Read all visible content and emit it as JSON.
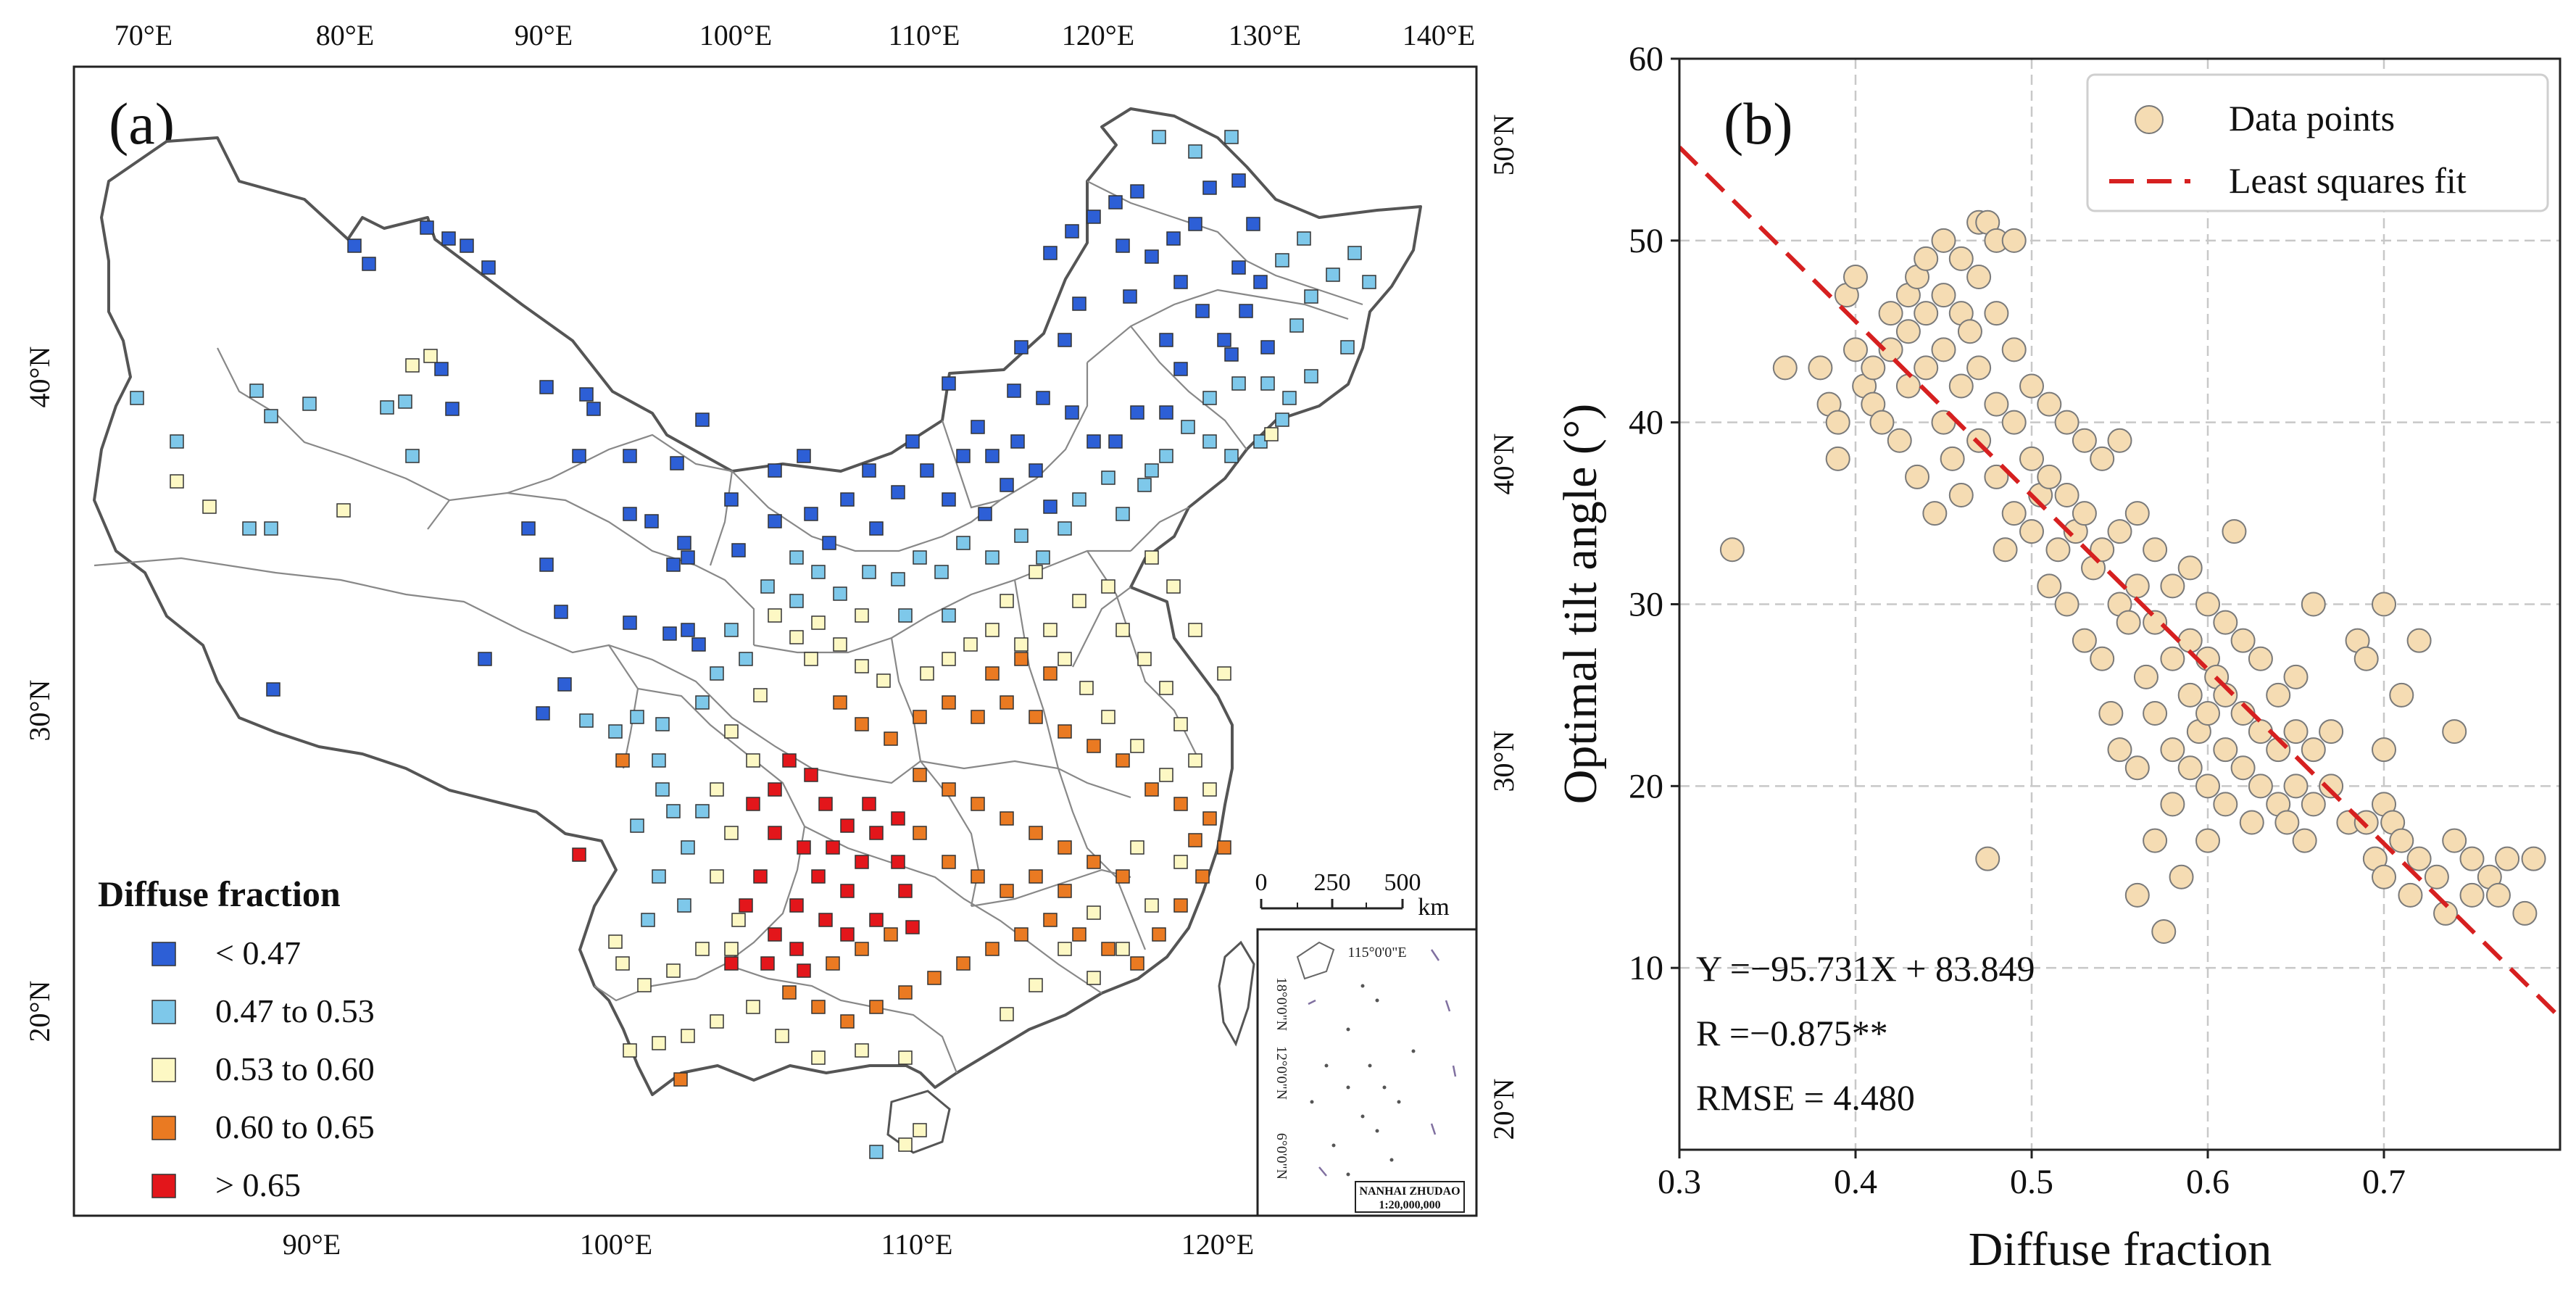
{
  "map_panel": {
    "label": "(a)",
    "lon_ticks_top": [
      "70°E",
      "80°E",
      "90°E",
      "100°E",
      "110°E",
      "120°E",
      "130°E",
      "140°E"
    ],
    "lat_ticks_left": [
      "40°N",
      "30°N",
      "20°N"
    ],
    "lat_ticks_right": [
      "50°N",
      "40°N",
      "30°N",
      "20°N"
    ],
    "lon_ticks_bottom": [
      "90°E",
      "100°E",
      "110°E",
      "120°E"
    ],
    "scale_bar": {
      "ticks": [
        "0",
        "250",
        "500"
      ],
      "unit": "km"
    },
    "inset": {
      "meridian": "115°0'0\"E",
      "parallels": [
        "18°0'0\"N",
        "12°0'0\"N",
        "6°0'0\"N"
      ],
      "name": "NANHAI ZHUDAO",
      "scale": "1:20,000,000"
    },
    "legend": {
      "title": "Diffuse fraction",
      "items": [
        {
          "label": "< 0.47",
          "color": "#2d5fd6"
        },
        {
          "label": "0.47 to 0.53",
          "color": "#7ec8ea"
        },
        {
          "label": "0.53 to 0.60",
          "color": "#fdf8c4"
        },
        {
          "label": "0.60 to 0.65",
          "color": "#ea7a22"
        },
        {
          "label": "> 0.65",
          "color": "#e3161b"
        }
      ]
    }
  },
  "chart_data": {
    "type": "scatter",
    "label": "(b)",
    "xlabel": "Diffuse fraction",
    "ylabel": "Optimal tilt angle (°)",
    "xlim": [
      0.3,
      0.8
    ],
    "ylim": [
      0,
      60
    ],
    "xticks": [
      0.3,
      0.4,
      0.5,
      0.6,
      0.7
    ],
    "yticks": [
      10,
      20,
      30,
      40,
      50,
      60
    ],
    "grid": true,
    "legend_position": "top-right",
    "legend": [
      "Data points",
      "Least squares fit"
    ],
    "marker_color": "#f5dcb3",
    "fit_color": "#d62020",
    "fit": {
      "slope": -95.731,
      "intercept": 83.849
    },
    "annotations": [
      "Y =−95.731X + 83.849",
      "R =−0.875**",
      "RMSE = 4.480"
    ],
    "points": [
      [
        0.33,
        33
      ],
      [
        0.36,
        43
      ],
      [
        0.38,
        43
      ],
      [
        0.385,
        41
      ],
      [
        0.39,
        40
      ],
      [
        0.39,
        38
      ],
      [
        0.395,
        47
      ],
      [
        0.4,
        48
      ],
      [
        0.4,
        44
      ],
      [
        0.405,
        42
      ],
      [
        0.41,
        43
      ],
      [
        0.41,
        41
      ],
      [
        0.415,
        40
      ],
      [
        0.42,
        46
      ],
      [
        0.42,
        44
      ],
      [
        0.425,
        39
      ],
      [
        0.43,
        47
      ],
      [
        0.43,
        45
      ],
      [
        0.43,
        42
      ],
      [
        0.435,
        48
      ],
      [
        0.435,
        37
      ],
      [
        0.44,
        49
      ],
      [
        0.44,
        46
      ],
      [
        0.44,
        43
      ],
      [
        0.445,
        35
      ],
      [
        0.45,
        50
      ],
      [
        0.45,
        47
      ],
      [
        0.45,
        44
      ],
      [
        0.45,
        40
      ],
      [
        0.455,
        38
      ],
      [
        0.46,
        49
      ],
      [
        0.46,
        46
      ],
      [
        0.46,
        42
      ],
      [
        0.46,
        36
      ],
      [
        0.465,
        45
      ],
      [
        0.47,
        51
      ],
      [
        0.47,
        48
      ],
      [
        0.47,
        43
      ],
      [
        0.47,
        39
      ],
      [
        0.475,
        16
      ],
      [
        0.475,
        51
      ],
      [
        0.48,
        50
      ],
      [
        0.48,
        46
      ],
      [
        0.48,
        41
      ],
      [
        0.48,
        37
      ],
      [
        0.485,
        33
      ],
      [
        0.49,
        50
      ],
      [
        0.49,
        44
      ],
      [
        0.49,
        40
      ],
      [
        0.49,
        35
      ],
      [
        0.5,
        42
      ],
      [
        0.5,
        38
      ],
      [
        0.5,
        34
      ],
      [
        0.505,
        36
      ],
      [
        0.51,
        41
      ],
      [
        0.51,
        37
      ],
      [
        0.51,
        31
      ],
      [
        0.515,
        33
      ],
      [
        0.52,
        40
      ],
      [
        0.52,
        36
      ],
      [
        0.52,
        30
      ],
      [
        0.525,
        34
      ],
      [
        0.53,
        39
      ],
      [
        0.53,
        35
      ],
      [
        0.53,
        28
      ],
      [
        0.535,
        32
      ],
      [
        0.54,
        38
      ],
      [
        0.54,
        33
      ],
      [
        0.54,
        27
      ],
      [
        0.545,
        24
      ],
      [
        0.55,
        39
      ],
      [
        0.55,
        34
      ],
      [
        0.55,
        30
      ],
      [
        0.55,
        22
      ],
      [
        0.555,
        29
      ],
      [
        0.56,
        35
      ],
      [
        0.56,
        31
      ],
      [
        0.56,
        21
      ],
      [
        0.56,
        14
      ],
      [
        0.565,
        26
      ],
      [
        0.57,
        33
      ],
      [
        0.57,
        29
      ],
      [
        0.57,
        24
      ],
      [
        0.57,
        17
      ],
      [
        0.575,
        12
      ],
      [
        0.58,
        31
      ],
      [
        0.58,
        27
      ],
      [
        0.58,
        22
      ],
      [
        0.58,
        19
      ],
      [
        0.585,
        15
      ],
      [
        0.59,
        32
      ],
      [
        0.59,
        28
      ],
      [
        0.59,
        25
      ],
      [
        0.59,
        21
      ],
      [
        0.595,
        23
      ],
      [
        0.6,
        30
      ],
      [
        0.6,
        27
      ],
      [
        0.6,
        24
      ],
      [
        0.6,
        20
      ],
      [
        0.6,
        17
      ],
      [
        0.605,
        26
      ],
      [
        0.61,
        29
      ],
      [
        0.61,
        25
      ],
      [
        0.61,
        22
      ],
      [
        0.61,
        19
      ],
      [
        0.615,
        34
      ],
      [
        0.62,
        28
      ],
      [
        0.62,
        24
      ],
      [
        0.62,
        21
      ],
      [
        0.625,
        18
      ],
      [
        0.63,
        27
      ],
      [
        0.63,
        23
      ],
      [
        0.63,
        20
      ],
      [
        0.64,
        25
      ],
      [
        0.64,
        22
      ],
      [
        0.64,
        19
      ],
      [
        0.645,
        18
      ],
      [
        0.65,
        26
      ],
      [
        0.65,
        23
      ],
      [
        0.65,
        20
      ],
      [
        0.655,
        17
      ],
      [
        0.66,
        30
      ],
      [
        0.66,
        22
      ],
      [
        0.66,
        19
      ],
      [
        0.67,
        23
      ],
      [
        0.67,
        20
      ],
      [
        0.68,
        18
      ],
      [
        0.685,
        28
      ],
      [
        0.69,
        27
      ],
      [
        0.69,
        18
      ],
      [
        0.695,
        16
      ],
      [
        0.7,
        30
      ],
      [
        0.7,
        22
      ],
      [
        0.7,
        19
      ],
      [
        0.7,
        15
      ],
      [
        0.705,
        18
      ],
      [
        0.71,
        25
      ],
      [
        0.71,
        17
      ],
      [
        0.715,
        14
      ],
      [
        0.72,
        28
      ],
      [
        0.72,
        16
      ],
      [
        0.73,
        15
      ],
      [
        0.735,
        13
      ],
      [
        0.74,
        23
      ],
      [
        0.74,
        17
      ],
      [
        0.75,
        16
      ],
      [
        0.75,
        14
      ],
      [
        0.76,
        15
      ],
      [
        0.765,
        14
      ],
      [
        0.77,
        16
      ],
      [
        0.78,
        13
      ],
      [
        0.785,
        16
      ]
    ]
  }
}
